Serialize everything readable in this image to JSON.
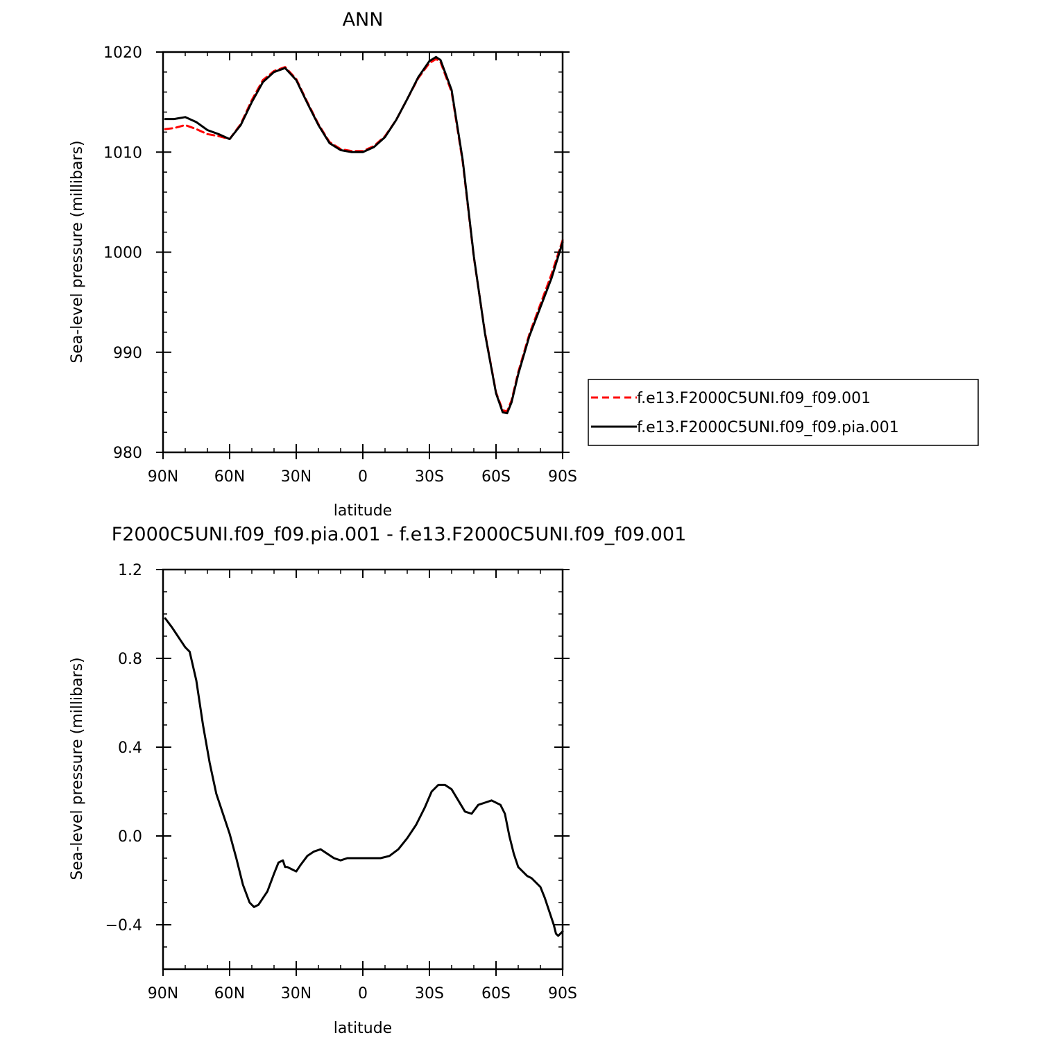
{
  "chart_data": [
    {
      "type": "line",
      "title": "ANN",
      "xlabel": "latitude",
      "ylabel": "Sea-level pressure (millibars)",
      "xlim": [
        -90,
        90
      ],
      "ylim": [
        980,
        1020
      ],
      "x_reversed": true,
      "x_ticks": [
        90,
        60,
        30,
        0,
        -30,
        -60,
        -90
      ],
      "x_tick_labels": [
        "90N",
        "60N",
        "30N",
        "0",
        "30S",
        "60S",
        "90S"
      ],
      "y_ticks": [
        980,
        990,
        1000,
        1010,
        1020
      ],
      "y_tick_labels": [
        "980",
        "990",
        "1000",
        "1010",
        "1020"
      ],
      "legend_position": "right",
      "series": [
        {
          "name": "f.e13.F2000C5UNI.f09_f09.001",
          "color": "#ff0000",
          "style": "dashed",
          "x": [
            89,
            85,
            80,
            75,
            70,
            65,
            60,
            55,
            50,
            45,
            40,
            35,
            30,
            25,
            20,
            15,
            10,
            5,
            0,
            -5,
            -10,
            -15,
            -20,
            -25,
            -30,
            -33,
            -35,
            -40,
            -45,
            -50,
            -55,
            -60,
            -63,
            -65,
            -67,
            -70,
            -75,
            -80,
            -85,
            -90
          ],
          "y": [
            1012.3,
            1012.4,
            1012.7,
            1012.3,
            1011.8,
            1011.6,
            1011.3,
            1012.8,
            1015.2,
            1017.2,
            1018.1,
            1018.5,
            1017.3,
            1015.0,
            1012.8,
            1011.0,
            1010.3,
            1010.1,
            1010.1,
            1010.6,
            1011.6,
            1013.2,
            1015.3,
            1017.4,
            1018.9,
            1019.3,
            1019.0,
            1016.0,
            1009.0,
            999.5,
            992.0,
            986.0,
            984.2,
            984.1,
            985.2,
            988.0,
            991.8,
            994.8,
            997.8,
            1001.2
          ]
        },
        {
          "name": "f.e13.F2000C5UNI.f09_f09.pia.001",
          "color": "#000000",
          "style": "solid",
          "x": [
            89,
            85,
            80,
            75,
            70,
            65,
            60,
            55,
            50,
            45,
            40,
            35,
            30,
            25,
            20,
            15,
            10,
            5,
            0,
            -5,
            -10,
            -15,
            -20,
            -25,
            -30,
            -33,
            -35,
            -40,
            -45,
            -50,
            -55,
            -60,
            -63,
            -65,
            -67,
            -70,
            -75,
            -80,
            -85,
            -90
          ],
          "y": [
            1013.3,
            1013.3,
            1013.5,
            1013.0,
            1012.2,
            1011.8,
            1011.3,
            1012.7,
            1015.0,
            1017.0,
            1018.0,
            1018.4,
            1017.2,
            1014.9,
            1012.7,
            1010.9,
            1010.2,
            1010.0,
            1010.0,
            1010.5,
            1011.5,
            1013.2,
            1015.3,
            1017.5,
            1019.1,
            1019.5,
            1019.2,
            1016.2,
            1009.2,
            999.6,
            991.9,
            985.9,
            984.0,
            983.9,
            985.0,
            987.8,
            991.6,
            994.5,
            997.4,
            1001.0
          ]
        }
      ]
    },
    {
      "type": "line",
      "title": "F2000C5UNI.f09_f09.pia.001 - f.e13.F2000C5UNI.f09_f09.001",
      "xlabel": "latitude",
      "ylabel": "Sea-level pressure (millibars)",
      "xlim": [
        -90,
        90
      ],
      "ylim": [
        -0.6,
        1.2
      ],
      "x_reversed": true,
      "x_ticks": [
        90,
        60,
        30,
        0,
        -30,
        -60,
        -90
      ],
      "x_tick_labels": [
        "90N",
        "60N",
        "30N",
        "0",
        "30S",
        "60S",
        "90S"
      ],
      "y_ticks": [
        -0.4,
        0.0,
        0.4,
        0.8,
        1.2
      ],
      "y_tick_labels": [
        "−0.4",
        "0.0",
        "0.4",
        "0.8",
        "1.2"
      ],
      "series": [
        {
          "color": "#000000",
          "style": "solid",
          "x": [
            89,
            86,
            82,
            80,
            78,
            75,
            72,
            69,
            66,
            63,
            60,
            57,
            54,
            51,
            49,
            47,
            45,
            43,
            40,
            38,
            36,
            35,
            34,
            32,
            30,
            28,
            25,
            22,
            19,
            16,
            13,
            10,
            7,
            4,
            0,
            -4,
            -8,
            -12,
            -16,
            -20,
            -24,
            -28,
            -31,
            -34,
            -37,
            -40,
            -43,
            -46,
            -49,
            -52,
            -55,
            -58,
            -62,
            -64,
            -66,
            -68,
            -70,
            -72,
            -74,
            -76,
            -78,
            -80,
            -82,
            -84,
            -86,
            -87,
            -88,
            -89,
            -90
          ],
          "y": [
            0.98,
            0.94,
            0.88,
            0.85,
            0.83,
            0.7,
            0.5,
            0.33,
            0.19,
            0.1,
            0.01,
            -0.1,
            -0.22,
            -0.3,
            -0.32,
            -0.31,
            -0.28,
            -0.25,
            -0.17,
            -0.12,
            -0.11,
            -0.14,
            -0.14,
            -0.15,
            -0.16,
            -0.13,
            -0.09,
            -0.07,
            -0.06,
            -0.08,
            -0.1,
            -0.11,
            -0.1,
            -0.1,
            -0.1,
            -0.1,
            -0.1,
            -0.09,
            -0.06,
            -0.01,
            0.05,
            0.13,
            0.2,
            0.23,
            0.23,
            0.21,
            0.16,
            0.11,
            0.1,
            0.14,
            0.15,
            0.16,
            0.14,
            0.1,
            0.0,
            -0.08,
            -0.14,
            -0.16,
            -0.18,
            -0.19,
            -0.21,
            -0.23,
            -0.28,
            -0.34,
            -0.4,
            -0.44,
            -0.45,
            -0.44,
            -0.43
          ]
        }
      ]
    }
  ]
}
